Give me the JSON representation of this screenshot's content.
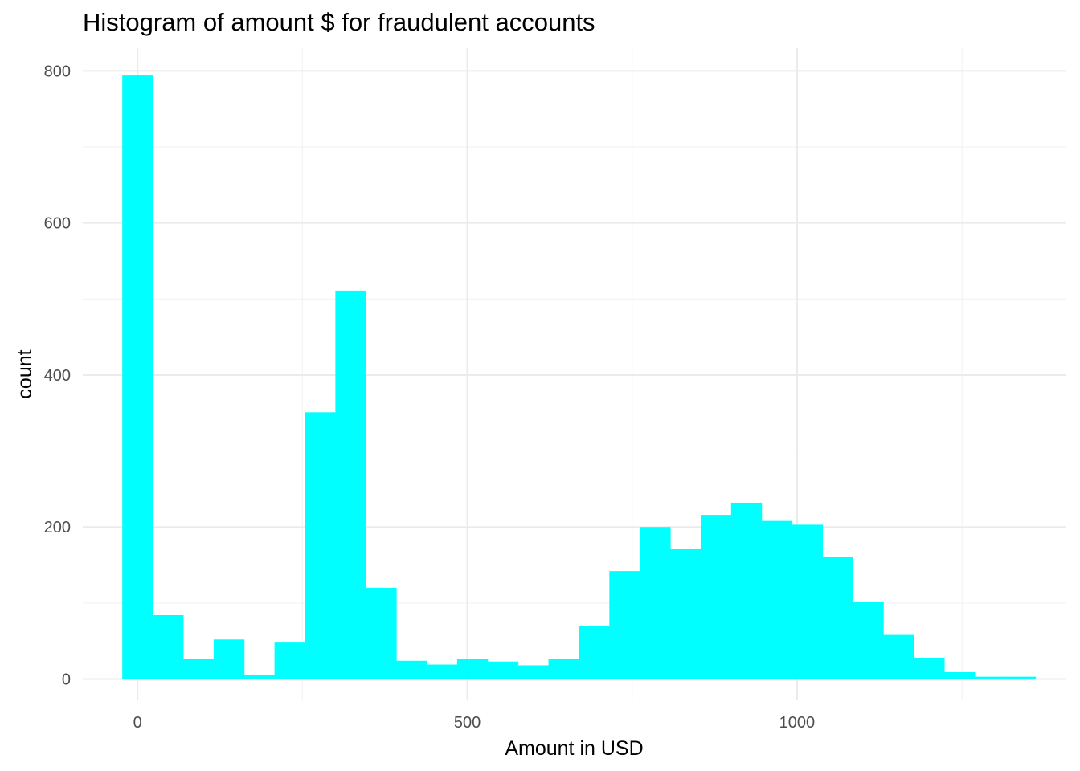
{
  "chart_data": {
    "type": "bar",
    "title": "Histogram of amount $ for fraudulent accounts",
    "xlabel": "Amount in USD",
    "ylabel": "count",
    "binwidth": 46.15,
    "bin_centers": [
      0,
      46.15,
      92.31,
      138.46,
      184.62,
      230.77,
      276.92,
      323.08,
      369.23,
      415.38,
      461.54,
      507.69,
      553.85,
      600.0,
      646.15,
      692.31,
      738.46,
      784.62,
      830.77,
      876.92,
      923.08,
      969.23,
      1015.38,
      1061.54,
      1107.69,
      1153.85,
      1200.0,
      1246.15,
      1292.31,
      1338.46
    ],
    "values": [
      794,
      84,
      26,
      52,
      5,
      49,
      351,
      511,
      120,
      24,
      19,
      26,
      23,
      18,
      26,
      70,
      142,
      200,
      171,
      216,
      232,
      208,
      203,
      161,
      102,
      58,
      28,
      9,
      3,
      3
    ],
    "xlim": [
      -83,
      1407
    ],
    "ylim": [
      -28,
      830
    ],
    "xticks": [
      0,
      500,
      1000
    ],
    "xtick_labels": [
      "0",
      "500",
      "1000"
    ],
    "yticks": [
      0,
      200,
      400,
      600,
      800
    ],
    "ytick_labels": [
      "0",
      "200",
      "400",
      "600",
      "800"
    ],
    "grid": true,
    "legend": "none",
    "colors": {
      "bar_fill": "#00FFFF",
      "grid_major": "#EBEBEB",
      "grid_minor": "#F2F2F2",
      "background": "#FFFFFF"
    }
  }
}
